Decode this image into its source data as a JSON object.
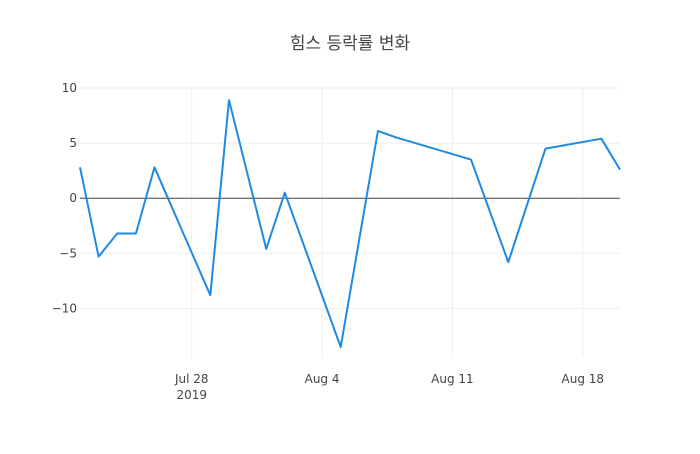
{
  "chart_data": {
    "type": "line",
    "title": "힘스 등락률 변화",
    "xlabel": "",
    "ylabel": "",
    "x_tick_labels": [
      "Jul 28",
      "Aug 4",
      "Aug 11",
      "Aug 18"
    ],
    "x_tick_sublabels": [
      "2019",
      "",
      "",
      ""
    ],
    "x_tick_dates": [
      "2019-07-28",
      "2019-08-04",
      "2019-08-11",
      "2019-08-18"
    ],
    "y_tick_labels": [
      "10",
      "5",
      "0",
      "−5",
      "−10"
    ],
    "y_tick_values": [
      10,
      5,
      0,
      -5,
      -10
    ],
    "xlim": [
      "2019-07-22",
      "2019-08-20"
    ],
    "ylim": [
      -14.5,
      10
    ],
    "grid": true,
    "zeroline": true,
    "line_color": "#1f8ae2",
    "series": [
      {
        "x": [
          "2019-07-22",
          "2019-07-23",
          "2019-07-24",
          "2019-07-25",
          "2019-07-26",
          "2019-07-29",
          "2019-07-30",
          "2019-08-01",
          "2019-08-02",
          "2019-08-05",
          "2019-08-07",
          "2019-08-08",
          "2019-08-12",
          "2019-08-14",
          "2019-08-16",
          "2019-08-19",
          "2019-08-20"
        ],
        "y": [
          2.8,
          -5.3,
          -3.2,
          -3.2,
          2.8,
          -8.8,
          8.9,
          -4.6,
          0.5,
          -13.5,
          6.1,
          5.5,
          3.5,
          -5.8,
          4.5,
          5.4,
          2.6
        ]
      }
    ]
  }
}
